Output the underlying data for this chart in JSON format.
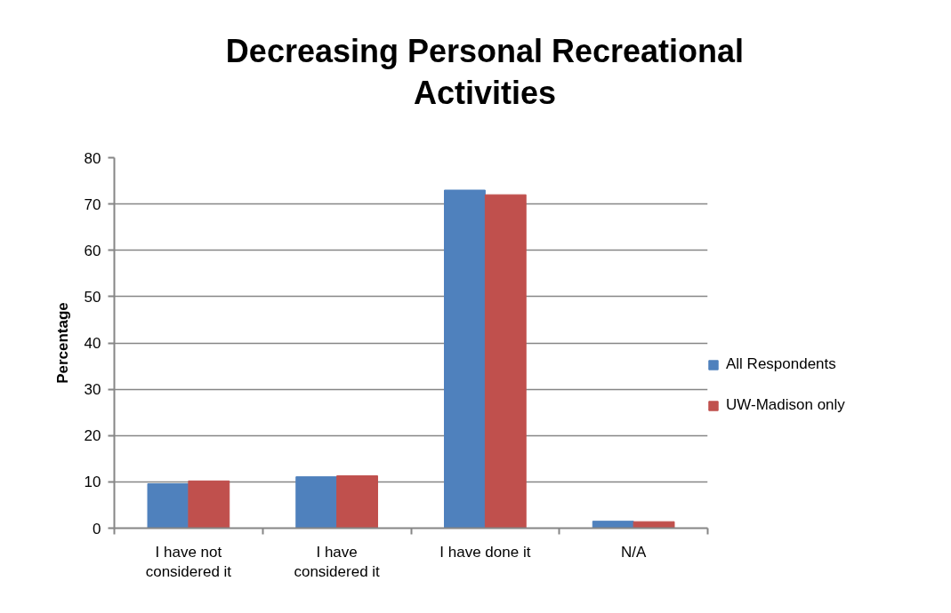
{
  "chart_data": {
    "type": "bar",
    "title": "Decreasing Personal Recreational Activities",
    "ylabel": "Percentage",
    "categories": [
      "I have not considered it",
      "I have considered it",
      "I have done it",
      "N/A"
    ],
    "series": [
      {
        "name": "All Respondents",
        "color": "#4f81bd",
        "values": [
          9.6,
          11.1,
          73,
          1.5
        ]
      },
      {
        "name": "UW-Madison only",
        "color": "#c0504d",
        "values": [
          10.2,
          11.3,
          72,
          1.4
        ]
      }
    ],
    "ylim": [
      0,
      80
    ],
    "yticks": [
      0,
      10,
      20,
      30,
      40,
      50,
      60,
      70,
      80
    ],
    "grid": "y",
    "legend": "right"
  }
}
